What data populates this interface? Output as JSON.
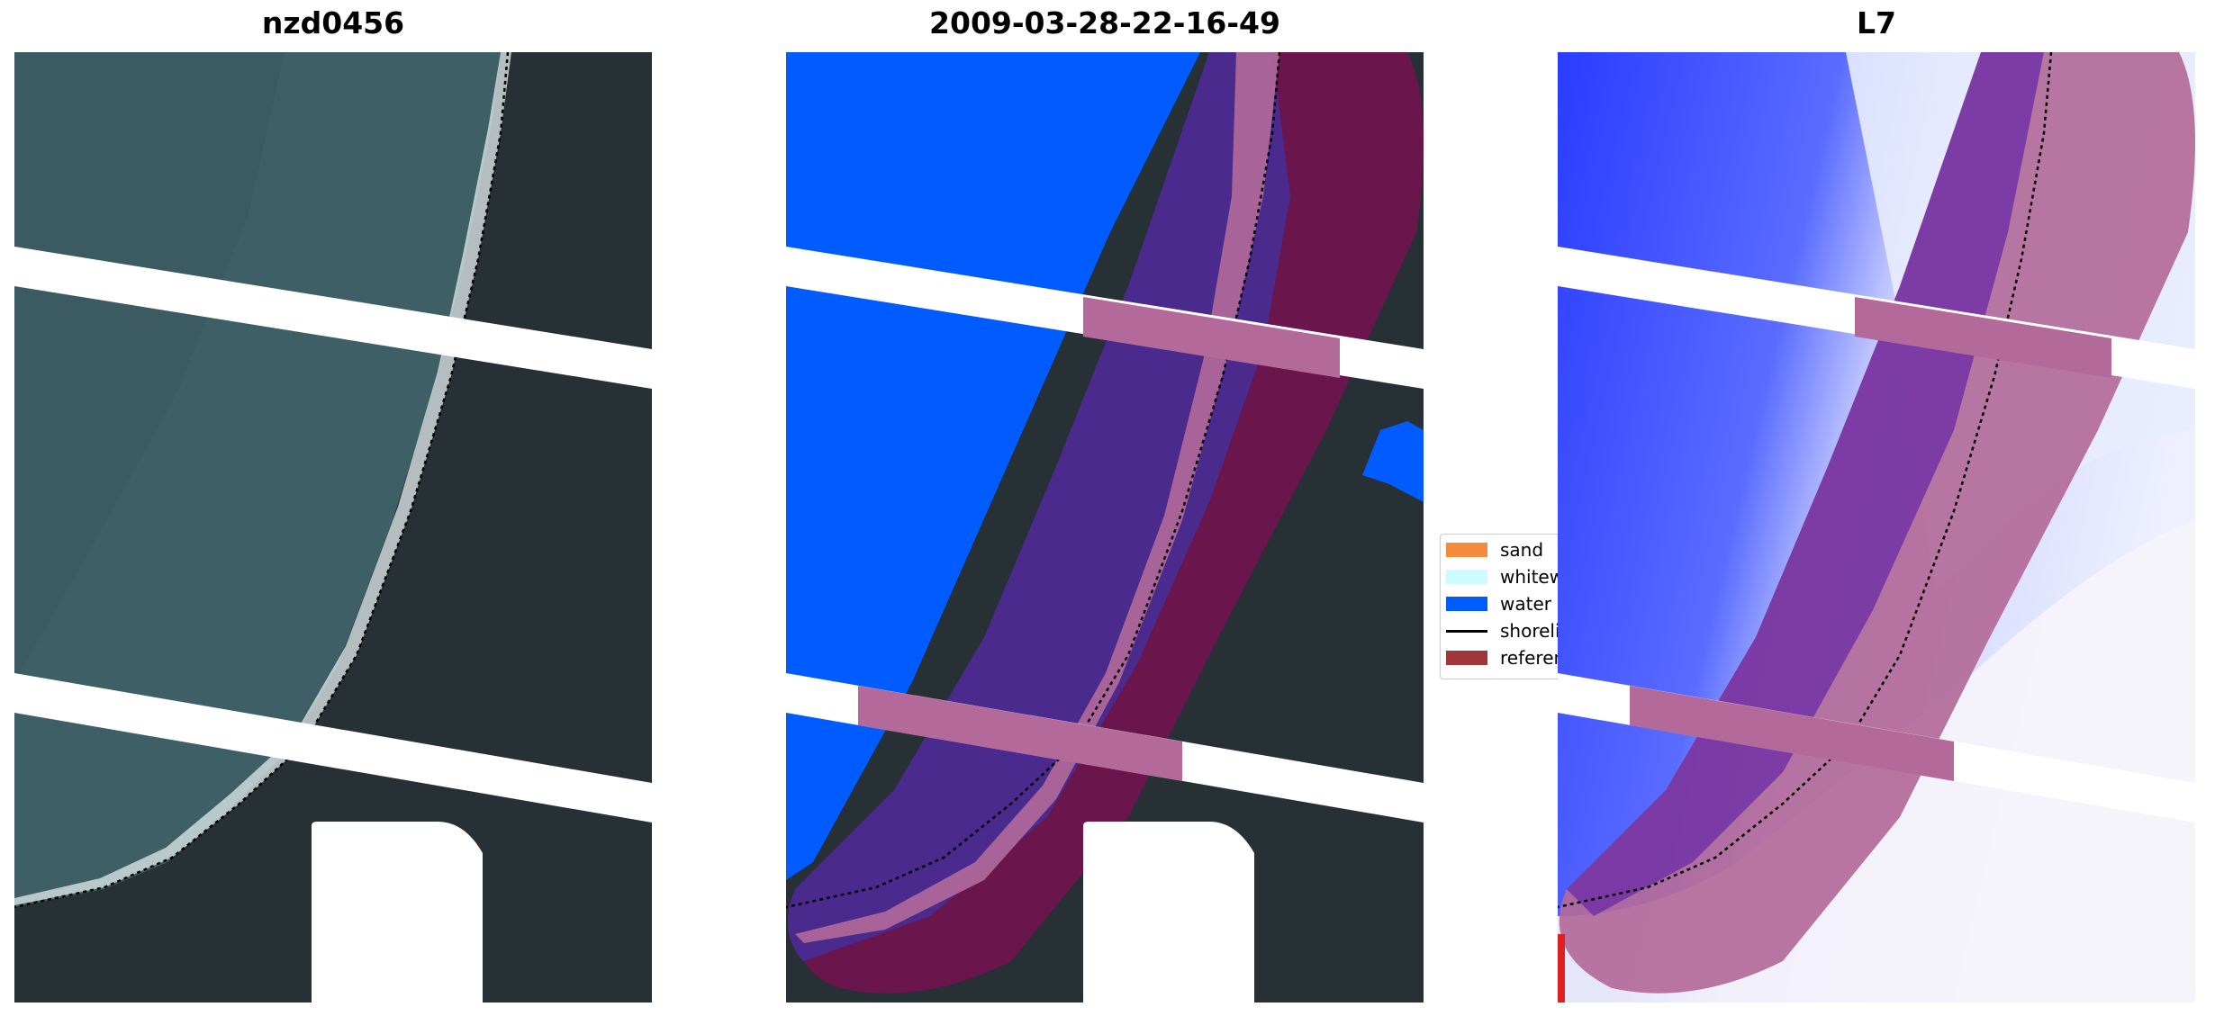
{
  "panels": [
    {
      "title": "nzd0456"
    },
    {
      "title": "2009-03-28-22-16-49"
    },
    {
      "title": "L7"
    }
  ],
  "legend": {
    "items": [
      {
        "label": "sand",
        "color": "#f58c3c",
        "kind": "patch"
      },
      {
        "label": "whitewater",
        "color": "#ccfcff",
        "kind": "patch"
      },
      {
        "label": "water",
        "color": "#005cff",
        "kind": "patch"
      },
      {
        "label": "shoreline",
        "color": "#000000",
        "kind": "line"
      },
      {
        "label": "reference",
        "color": "#a0353a",
        "kind": "patch"
      }
    ]
  },
  "colors": {
    "dark_land": "#263035",
    "sea_teal": "#3f5f66",
    "classified_water": "#005cff",
    "buffer_purple": "#4c2a92",
    "buffer_maroon": "#6b1448",
    "buffer_pink": "#b36a9a",
    "index_blue": "#2a3cff",
    "index_pale": "#e8ecff",
    "nodata": "#ffffff"
  }
}
